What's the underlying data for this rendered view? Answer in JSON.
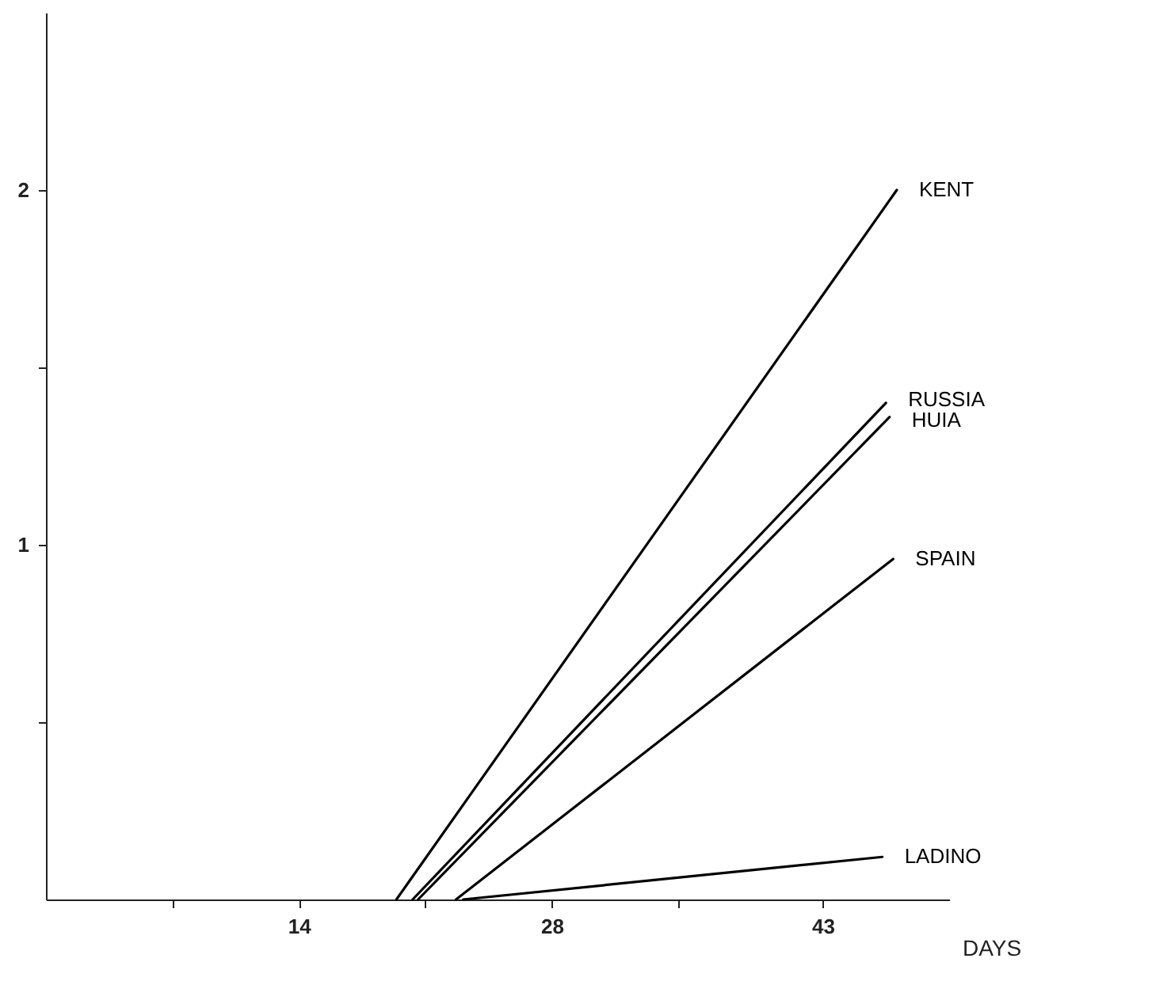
{
  "chart_data": {
    "type": "line",
    "xlabel": "DAYS",
    "xlim": [
      0,
      50
    ],
    "xticks": [
      {
        "value": 7,
        "label": null
      },
      14,
      {
        "value": 21,
        "label": null
      },
      28,
      {
        "value": 35,
        "label": null
      },
      43
    ],
    "ylim": [
      0,
      2.5
    ],
    "yticks": [
      {
        "value": 0.5,
        "label": null
      },
      1,
      {
        "value": 1.5,
        "label": null
      },
      2
    ],
    "grid": false,
    "marker": "none",
    "line_style": "solid",
    "series": [
      {
        "name": "KENT",
        "color": "#000000",
        "x": [
          19.4,
          47.1
        ],
        "values": [
          0,
          2.0
        ]
      },
      {
        "name": "RUSSIA",
        "color": "#000000",
        "x": [
          20.3,
          46.5
        ],
        "values": [
          0,
          1.4
        ]
      },
      {
        "name": "HUIA",
        "color": "#000000",
        "x": [
          20.6,
          46.7
        ],
        "values": [
          0,
          1.36
        ]
      },
      {
        "name": "SPAIN",
        "color": "#000000",
        "x": [
          22.7,
          46.9
        ],
        "values": [
          0,
          0.96
        ]
      },
      {
        "name": "LADINO",
        "color": "#000000",
        "x": [
          23.1,
          46.3
        ],
        "values": [
          0,
          0.12
        ]
      }
    ]
  }
}
